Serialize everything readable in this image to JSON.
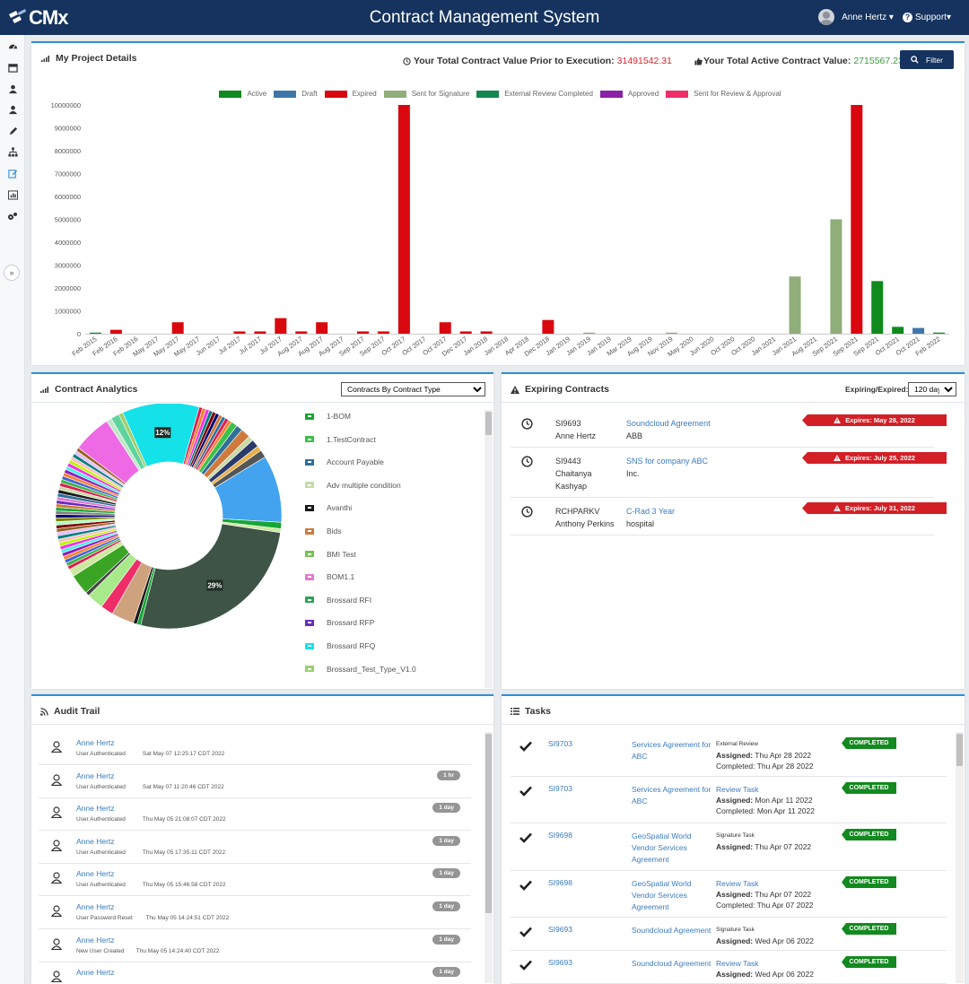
{
  "header": {
    "logo_text": "CMx",
    "title": "Contract Management System",
    "user_name": "Anne Hertz",
    "support_label": "Support"
  },
  "sidebar": {
    "icons": [
      "dashboard-icon",
      "calendar-icon",
      "users-icon",
      "user-settings-icon",
      "pencil-icon",
      "org-chart-icon",
      "edit-icon",
      "report-icon",
      "settings-icon"
    ],
    "expand_label": "»"
  },
  "project_details": {
    "title": "My Project Details",
    "prior_value_label": "Your Total Contract Value Prior to Execution:",
    "prior_value": "31491542.31",
    "active_value_label": "Your Total Active Contract Value:",
    "active_value": "2715567.23",
    "filter_label": "Filter"
  },
  "chart_data": {
    "type": "bar",
    "ylim": [
      0,
      10000000
    ],
    "yticks": [
      "0",
      "1000000",
      "2000000",
      "3000000",
      "4000000",
      "5000000",
      "6000000",
      "7000000",
      "8000000",
      "9000000",
      "10000000"
    ],
    "legend": [
      {
        "name": "Active",
        "color": "#0f8a1c"
      },
      {
        "name": "Draft",
        "color": "#3f76a8"
      },
      {
        "name": "Expired",
        "color": "#d9080f"
      },
      {
        "name": "Sent for Signature",
        "color": "#8fae7a"
      },
      {
        "name": "External Review Completed",
        "color": "#14874f"
      },
      {
        "name": "Approved",
        "color": "#8a21a8"
      },
      {
        "name": "Sent for Review  &  Approval",
        "color": "#ef2d69"
      }
    ],
    "categories": [
      "Feb 2015",
      "Feb 2016",
      "Feb 2016",
      "May 2017",
      "May 2017",
      "May 2017",
      "Jun 2017",
      "Jul 2017",
      "Jul 2017",
      "Jul 2017",
      "Aug 2017",
      "Aug 2017",
      "Aug 2017",
      "Sep 2017",
      "Sep 2017",
      "Oct 2017",
      "Oct 2017",
      "Oct 2017",
      "Dec 2017",
      "Jan 2018",
      "Jan 2018",
      "Apr 2018",
      "Dec 2018",
      "Jan 2019",
      "Jan 2019",
      "Jan 2019",
      "Mar 2019",
      "Aug 2019",
      "Nov 2019",
      "May 2020",
      "Jun 2020",
      "Oct 2020",
      "Oct 2020",
      "Jan 2021",
      "Jan 2021",
      "Aug 2021",
      "Sep 2021",
      "Sep 2021",
      "Sep 2021",
      "Oct 2021",
      "Oct 2021",
      "Feb 2022"
    ],
    "bars": [
      {
        "category": 0,
        "series": "Active",
        "value": 30000
      },
      {
        "category": 1,
        "series": "Expired",
        "value": 170000
      },
      {
        "category": 4,
        "series": "Expired",
        "value": 500000
      },
      {
        "category": 7,
        "series": "Expired",
        "value": 100000
      },
      {
        "category": 8,
        "series": "Expired",
        "value": 100000
      },
      {
        "category": 9,
        "series": "Expired",
        "value": 680000
      },
      {
        "category": 10,
        "series": "Expired",
        "value": 100000
      },
      {
        "category": 11,
        "series": "Expired",
        "value": 500000
      },
      {
        "category": 13,
        "series": "Expired",
        "value": 100000
      },
      {
        "category": 14,
        "series": "Expired",
        "value": 100000
      },
      {
        "category": 15,
        "series": "Expired",
        "value": 10000000
      },
      {
        "category": 17,
        "series": "Expired",
        "value": 500000
      },
      {
        "category": 18,
        "series": "Expired",
        "value": 100000
      },
      {
        "category": 19,
        "series": "Expired",
        "value": 100000
      },
      {
        "category": 22,
        "series": "Expired",
        "value": 600000
      },
      {
        "category": 24,
        "series": "Sent for Signature",
        "value": 20000
      },
      {
        "category": 28,
        "series": "Sent for Signature",
        "value": 30000
      },
      {
        "category": 34,
        "series": "Sent for Signature",
        "value": 2500000
      },
      {
        "category": 36,
        "series": "Sent for Signature",
        "value": 5000000
      },
      {
        "category": 37,
        "series": "Expired",
        "value": 10000000
      },
      {
        "category": 38,
        "series": "Active",
        "value": 2300000
      },
      {
        "category": 39,
        "series": "Active",
        "value": 300000
      },
      {
        "category": 40,
        "series": "Draft",
        "value": 250000
      },
      {
        "category": 41,
        "series": "Active",
        "value": 30000
      }
    ]
  },
  "analytics": {
    "title": "Contract Analytics",
    "select_value": "Contracts By Contract Type",
    "donut_labels": {
      "large": "29%",
      "medium": "12%"
    },
    "legend": [
      {
        "name": "1-BOM",
        "color": "#17a535"
      },
      {
        "name": "1.TestContract",
        "color": "#3cc04a"
      },
      {
        "name": "Account Payable",
        "color": "#2f6f9a"
      },
      {
        "name": "Adv multiple condition",
        "color": "#c7dba9"
      },
      {
        "name": "Avanthi",
        "color": "#1a1a1a"
      },
      {
        "name": "Bids",
        "color": "#cf7a3c"
      },
      {
        "name": "BMI Test",
        "color": "#78c152"
      },
      {
        "name": "BOM1.1",
        "color": "#e07ccf"
      },
      {
        "name": "Brossard RFI",
        "color": "#2fa35a"
      },
      {
        "name": "Brossard RFP",
        "color": "#6a2bbf"
      },
      {
        "name": "Brossard RFQ",
        "color": "#14e1e8"
      },
      {
        "name": "Brossard_Test_Type_V1.0",
        "color": "#9bcf73"
      }
    ]
  },
  "expiring": {
    "title": "Expiring Contracts",
    "filter_label": "Expiring/Expired:",
    "filter_value": "120 days",
    "rows": [
      {
        "code_lines": [
          "SI9693",
          "Anne Hertz"
        ],
        "name": "Soundcloud Agreement",
        "party": "ABB",
        "badge": "Expires: May 28, 2022"
      },
      {
        "code_lines": [
          "SI9443",
          "Chaitanya",
          "Kashyap"
        ],
        "name": "SNS for company ABC",
        "party": "Inc.",
        "badge": "Expires: July 25, 2022"
      },
      {
        "code_lines": [
          "RCHPARKV",
          "Anthony Perkins"
        ],
        "name": "C-Rad 3 Year",
        "party": "hospital",
        "badge": "Expires: July 31, 2022"
      }
    ]
  },
  "audit": {
    "title": "Audit Trail",
    "rows": [
      {
        "user": "Anne  Hertz",
        "action": "User Authenticated",
        "date": "Sat May 07 12:25:17 CDT 2022",
        "badge": ""
      },
      {
        "user": "Anne  Hertz",
        "action": "User Authenticated",
        "date": "Sat May 07 11:20:46 CDT 2022",
        "badge": "1 hr"
      },
      {
        "user": "Anne  Hertz",
        "action": "User Authenticated",
        "date": "Thu May 05 21:08:07 CDT 2022",
        "badge": "1 day"
      },
      {
        "user": "Anne  Hertz",
        "action": "User Authenticated",
        "date": "Thu May 05 17:35:11 CDT 2022",
        "badge": "1 day"
      },
      {
        "user": "Anne  Hertz",
        "action": "User Authenticated",
        "date": "Thu May 05 15:46:58 CDT 2022",
        "badge": "1 day"
      },
      {
        "user": "Anne  Hertz",
        "action": "User Password Reset",
        "date": "Thu May 05 14:24:51 CDT 2022",
        "badge": "1 day"
      },
      {
        "user": "Anne  Hertz",
        "action": "New User Created",
        "date": "Thu May 05 14:24:40 CDT 2022",
        "badge": "1 day"
      },
      {
        "user": "Anne  Hertz",
        "action": "",
        "date": "",
        "badge": "1 day"
      }
    ]
  },
  "tasks": {
    "title": "Tasks",
    "rows": [
      {
        "code": "SI9703",
        "name": "Services Agreement for ABC",
        "type": "External Review",
        "type_style": "small",
        "assigned": "Thu Apr 28 2022",
        "completed": "Thu Apr 28 2022",
        "status": "COMPLETED"
      },
      {
        "code": "SI9703",
        "name": "Services Agreement for ABC",
        "type": "Review Task",
        "type_style": "link",
        "assigned": "Mon Apr 11 2022",
        "completed": "Mon Apr 11 2022",
        "status": "COMPLETED"
      },
      {
        "code": "SI9698",
        "name": "GeoSpatial World Vendor Services Agreement",
        "type": "Signature Task",
        "type_style": "small",
        "assigned": "Thu Apr 07 2022",
        "completed": "",
        "status": "COMPLETED"
      },
      {
        "code": "SI9698",
        "name": "GeoSpatial World Vendor Services Agreement",
        "type": "Review Task",
        "type_style": "link",
        "assigned": "Thu Apr 07 2022",
        "completed": "Thu Apr 07 2022",
        "status": "COMPLETED"
      },
      {
        "code": "SI9693",
        "name": "Soundcloud Agreement",
        "type": "Signature Task",
        "type_style": "small",
        "assigned": "Wed Apr 06 2022",
        "completed": "",
        "status": "COMPLETED"
      },
      {
        "code": "SI9693",
        "name": "Soundcloud Agreement",
        "type": "Review Task",
        "type_style": "link",
        "assigned": "Wed Apr 06 2022",
        "completed": "",
        "status": "COMPLETED"
      }
    ],
    "assigned_label": "Assigned:",
    "completed_label": "Completed:"
  }
}
